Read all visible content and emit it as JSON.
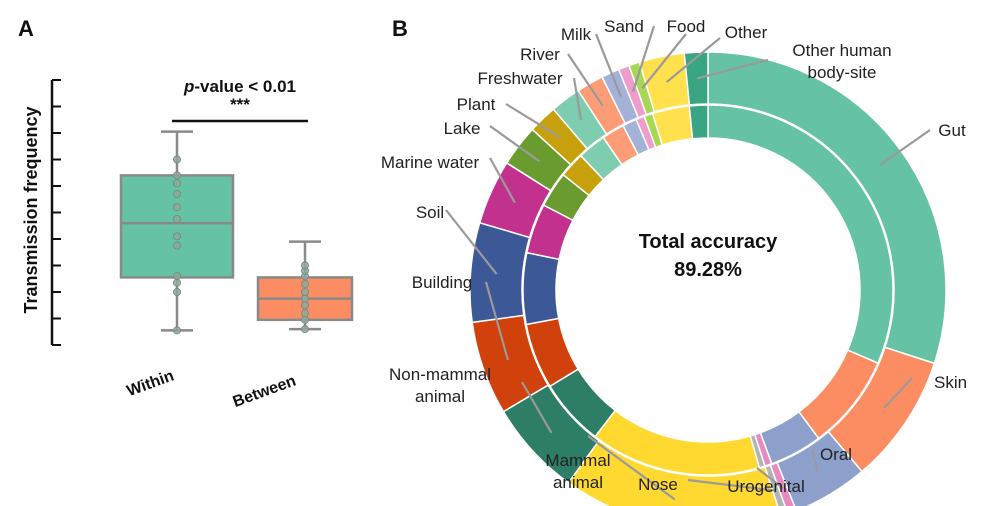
{
  "panel_a_letter": "A",
  "panel_b_letter": "B",
  "chart_data": [
    {
      "type": "box",
      "ylabel": "Transmission frequency",
      "categories": [
        "Within",
        "Between"
      ],
      "ylim": [
        0,
        10
      ],
      "boxes": [
        {
          "name": "Within",
          "color": "#66c2a5",
          "whisker_low": 0.55,
          "q1": 2.55,
          "median": 4.6,
          "q3": 6.4,
          "whisker_high": 8.05,
          "points": [
            0.55,
            2.0,
            2.35,
            2.6,
            3.75,
            4.1,
            4.75,
            5.2,
            5.7,
            6.1,
            6.4,
            7.0
          ]
        },
        {
          "name": "Between",
          "color": "#fc8d62",
          "whisker_low": 0.6,
          "q1": 0.95,
          "median": 1.75,
          "q3": 2.55,
          "whisker_high": 3.9,
          "points": [
            0.6,
            0.95,
            1.2,
            1.5,
            1.75,
            2.0,
            2.3,
            2.6,
            2.8,
            3.0
          ]
        }
      ],
      "significance": {
        "label_p": "p",
        "label_rest": "-value < 0.01",
        "stars": "***"
      }
    },
    {
      "type": "pie",
      "subtype": "nested-donut",
      "center_text": [
        "Total accuracy",
        "89.28%"
      ],
      "rings": [
        {
          "name": "outer",
          "slices": [
            {
              "label": "Gut",
              "value": 24.5,
              "color": "#66c2a5"
            },
            {
              "label": "Skin",
              "value": 7.2,
              "color": "#fc8d62"
            },
            {
              "label": "Oral",
              "value": 4.2,
              "color": "#8da0cb"
            },
            {
              "label": "Urogenital",
              "value": 0.5,
              "color": "#e78ac3"
            },
            {
              "label": "Nose",
              "value": 0.4,
              "color": "#b3b3b3"
            },
            {
              "label": "Mammal animal",
              "value": 12.2,
              "color": "#ffd92f"
            },
            {
              "label": "Non-mammal animal",
              "value": 5.3,
              "color": "#2e7d66"
            },
            {
              "label": "Building",
              "value": 5.2,
              "color": "#d1410b"
            },
            {
              "label": "Soil",
              "value": 5.5,
              "color": "#3d5896"
            },
            {
              "label": "Marine water",
              "value": 3.6,
              "color": "#c2318e"
            },
            {
              "label": "Lake",
              "value": 2.3,
              "color": "#6a9b2e"
            },
            {
              "label": "Plant",
              "value": 1.6,
              "color": "#c7a10b"
            },
            {
              "label": "Freshwater",
              "value": 1.7,
              "color": "#7fcdb0"
            },
            {
              "label": "River",
              "value": 1.5,
              "color": "#fc9d77"
            },
            {
              "label": "Milk",
              "value": 1.0,
              "color": "#a5b2d8"
            },
            {
              "label": "Sand",
              "value": 0.6,
              "color": "#ee9ccc"
            },
            {
              "label": "Food",
              "value": 0.6,
              "color": "#a6d854"
            },
            {
              "label": "Other",
              "value": 2.5,
              "color": "#ffe04d"
            },
            {
              "label": "Other human body-site",
              "value": 1.3,
              "color": "#3aa582"
            }
          ]
        },
        {
          "name": "inner",
          "slices": [
            {
              "label": "Gut",
              "value": 25.3,
              "color": "#66c2a5"
            },
            {
              "label": "Skin",
              "value": 6.7,
              "color": "#fc8d62"
            },
            {
              "label": "Oral",
              "value": 3.7,
              "color": "#8da0cb"
            },
            {
              "label": "Urogenital",
              "value": 0.5,
              "color": "#e78ac3"
            },
            {
              "label": "Nose",
              "value": 0.4,
              "color": "#b3b3b3"
            },
            {
              "label": "Mammal animal",
              "value": 12.0,
              "color": "#ffd92f"
            },
            {
              "label": "Non-mammal animal",
              "value": 4.7,
              "color": "#2e7d66"
            },
            {
              "label": "Building",
              "value": 4.6,
              "color": "#d1410b"
            },
            {
              "label": "Soil",
              "value": 5.0,
              "color": "#3d5896"
            },
            {
              "label": "Marine water",
              "value": 3.5,
              "color": "#c2318e"
            },
            {
              "label": "Lake",
              "value": 2.5,
              "color": "#6a9b2e"
            },
            {
              "label": "Plant",
              "value": 1.8,
              "color": "#c7a10b"
            },
            {
              "label": "Freshwater",
              "value": 2.0,
              "color": "#7fcdb0"
            },
            {
              "label": "River",
              "value": 1.6,
              "color": "#fc9d77"
            },
            {
              "label": "Milk",
              "value": 1.0,
              "color": "#a5b2d8"
            },
            {
              "label": "Sand",
              "value": 0.6,
              "color": "#ee9ccc"
            },
            {
              "label": "Food",
              "value": 0.6,
              "color": "#a6d854"
            },
            {
              "label": "Other",
              "value": 2.6,
              "color": "#ffe04d"
            },
            {
              "label": "Other human body-site",
              "value": 1.3,
              "color": "#3aa582"
            }
          ]
        }
      ],
      "legend_labels": [
        {
          "text": [
            "Gut"
          ]
        },
        {
          "text": [
            "Skin"
          ]
        },
        {
          "text": [
            "Oral"
          ]
        },
        {
          "text": [
            "Urogenital"
          ]
        },
        {
          "text": [
            "Nose"
          ]
        },
        {
          "text": [
            "Mammal",
            "animal"
          ]
        },
        {
          "text": [
            "Non-mammal",
            "animal"
          ]
        },
        {
          "text": [
            "Building"
          ]
        },
        {
          "text": [
            "Soil"
          ]
        },
        {
          "text": [
            "Marine water"
          ]
        },
        {
          "text": [
            "Lake"
          ]
        },
        {
          "text": [
            "Plant"
          ]
        },
        {
          "text": [
            "Freshwater"
          ]
        },
        {
          "text": [
            "River"
          ]
        },
        {
          "text": [
            "Milk"
          ]
        },
        {
          "text": [
            "Sand"
          ]
        },
        {
          "text": [
            "Food"
          ]
        },
        {
          "text": [
            "Other"
          ]
        },
        {
          "text": [
            "Other human",
            "body-site"
          ]
        }
      ]
    }
  ]
}
